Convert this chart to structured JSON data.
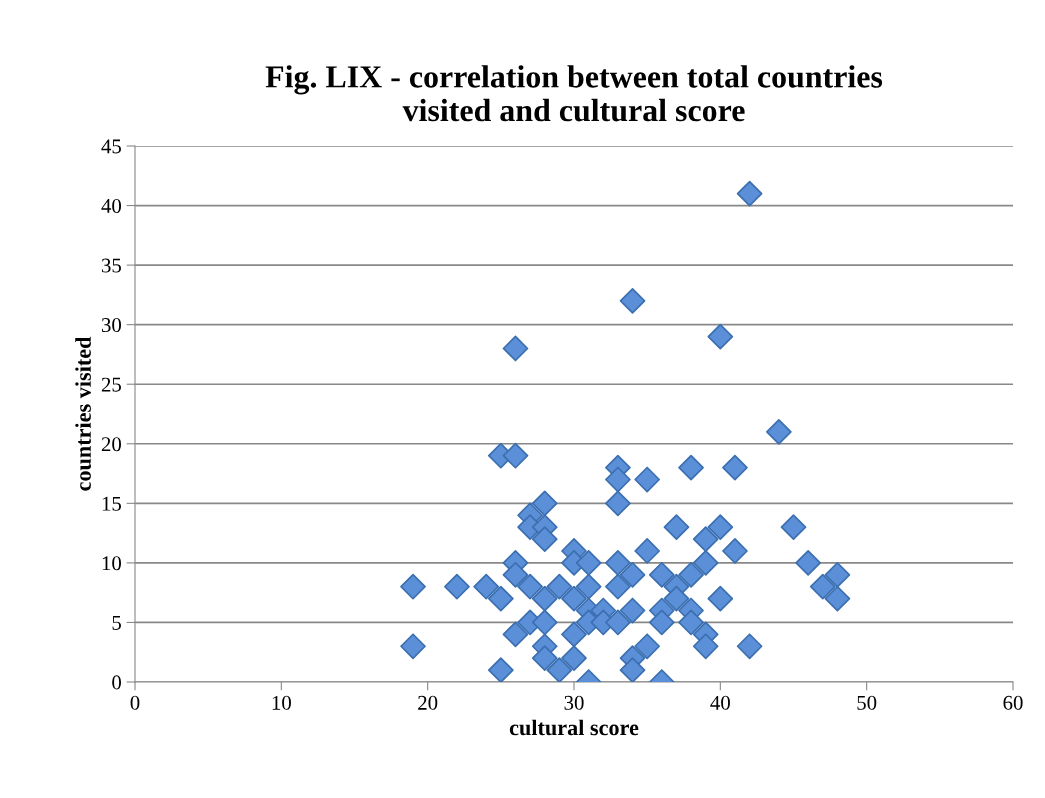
{
  "chart_data": {
    "type": "scatter",
    "title": "Fig. LIX - correlation between total countries\nvisited and cultural score",
    "xlabel": "cultural score",
    "ylabel": "countries visited",
    "x": [
      19,
      19,
      22,
      24,
      25,
      25,
      25,
      26,
      26,
      26,
      26,
      26,
      27,
      27,
      27,
      27,
      28,
      28,
      28,
      28,
      28,
      28,
      28,
      29,
      29,
      30,
      30,
      30,
      30,
      30,
      31,
      31,
      31,
      31,
      31,
      32,
      32,
      33,
      33,
      33,
      33,
      33,
      33,
      34,
      34,
      34,
      34,
      34,
      35,
      35,
      35,
      36,
      36,
      36,
      36,
      37,
      37,
      37,
      38,
      38,
      38,
      38,
      39,
      39,
      39,
      39,
      40,
      40,
      40,
      41,
      41,
      42,
      42,
      44,
      45,
      46,
      47,
      48,
      48
    ],
    "values": [
      8,
      3,
      8,
      8,
      7,
      19,
      1,
      28,
      19,
      10,
      9,
      4,
      14,
      13,
      8,
      5,
      15,
      13,
      12,
      7,
      5,
      3,
      2,
      8,
      1,
      11,
      10,
      7,
      4,
      2,
      10,
      8,
      6,
      5,
      0,
      6,
      5,
      18,
      17,
      15,
      10,
      8,
      5,
      32,
      9,
      6,
      2,
      1,
      17,
      11,
      3,
      9,
      6,
      5,
      0,
      13,
      8,
      7,
      18,
      9,
      6,
      5,
      12,
      10,
      4,
      3,
      29,
      13,
      7,
      18,
      11,
      41,
      3,
      21,
      13,
      10,
      8,
      9,
      7
    ],
    "color": "#5b8fd8",
    "marker": "diamond",
    "xlim": [
      0,
      60
    ],
    "xticks": [
      0,
      10,
      20,
      30,
      40,
      50,
      60
    ],
    "ylim": [
      0,
      45
    ],
    "yticks": [
      0,
      5,
      10,
      15,
      20,
      25,
      30,
      35,
      40,
      45
    ],
    "grid": "y",
    "legend": false
  }
}
